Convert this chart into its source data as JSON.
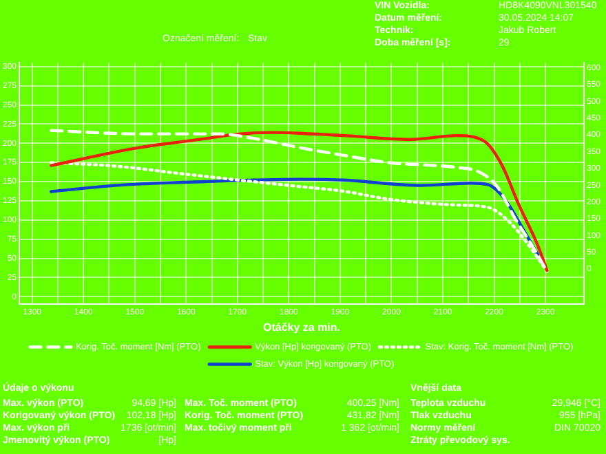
{
  "chart_data": {
    "type": "line",
    "xlabel": "Otáčky za min.",
    "grid": true,
    "legend": "bottom",
    "marker": "none",
    "xlim": [
      1275,
      2375
    ],
    "xticks": [
      1300,
      {
        "value": 1350,
        "label": null
      },
      1400,
      {
        "value": 1450,
        "label": null
      },
      1500,
      {
        "value": 1550,
        "label": null
      },
      1600,
      {
        "value": 1650,
        "label": null
      },
      1700,
      {
        "value": 1750,
        "label": null
      },
      1800,
      {
        "value": 1850,
        "label": null
      },
      1900,
      {
        "value": 1950,
        "label": null
      },
      2000,
      {
        "value": 2050,
        "label": null
      },
      2100,
      {
        "value": 2150,
        "label": null
      },
      2200,
      {
        "value": 2250,
        "label": null
      },
      2300
    ],
    "ylim": [
      -10,
      305
    ],
    "yticks": [
      0,
      25,
      50,
      75,
      100,
      125,
      150,
      175,
      200,
      225,
      250,
      275,
      300
    ],
    "y2lim": [
      -105,
      615
    ],
    "y2ticks": [
      0,
      50,
      100,
      150,
      200,
      250,
      300,
      350,
      400,
      450,
      500,
      550,
      600
    ],
    "series": [
      {
        "name": "Korig. Toč. moment [Nm] (PTO)",
        "color": "#ffffff",
        "axis": "y2",
        "line_style": "dashed",
        "x": [
          1337,
          1506,
          1663,
          1733,
          1821,
          1907,
          1996,
          2127,
          2170,
          2206,
          2241,
          2275,
          2303
        ],
        "values": [
          413,
          403,
          403,
          389,
          362,
          339,
          317,
          303,
          290,
          246,
          150,
          68,
          -7
        ]
      },
      {
        "name": "Výkon [Hp] korigovaný (PTO)",
        "color": "#e8210a",
        "line_style": "solid",
        "x": [
          1337,
          1506,
          1637,
          1702,
          1768,
          1821,
          1907,
          2038,
          2127,
          2180,
          2214,
          2248,
          2285,
          2303
        ],
        "values": [
          171,
          194,
          206,
          212,
          214,
          213,
          210,
          205,
          210,
          203,
          173,
          120,
          67,
          34
        ]
      },
      {
        "name": "Stav: Korig. Toč. moment [Nm] (PTO)",
        "color": "#ffffff",
        "axis": "y2",
        "line_style": "dotted",
        "x": [
          1337,
          1461,
          1593,
          1698,
          1821,
          1907,
          1996,
          2127,
          2188,
          2232,
          2275,
          2303
        ],
        "values": [
          317,
          307,
          284,
          266,
          246,
          232,
          208,
          191,
          184,
          137,
          55,
          -7
        ]
      },
      {
        "name": "Stav: Výkon [Hp] korigovaný (PTO)",
        "color": "#1040d0",
        "line_style": "solid",
        "x": [
          1337,
          1461,
          1637,
          1821,
          1907,
          2057,
          2154,
          2188,
          2222,
          2259,
          2285
        ],
        "values": [
          137,
          145,
          150,
          153,
          152,
          145,
          148,
          146,
          126,
          85,
          55
        ]
      }
    ],
    "annotations": [
      "Označení měření:",
      "Stav",
      "VIN Vozidla:",
      "HD8K4090VNL301540",
      "Datum měření:",
      "30.05.2024 14:07",
      "Technik:",
      "Jakub Robert",
      "Doba měření [s]:",
      "29",
      "Údaje o výkonu",
      "Vnější data",
      "Max. výkon (PTO)",
      "94,69 [Hp]",
      "Max. Toč. moment (PTO)",
      "400,25 [Nm]",
      "Teplota vzduchu",
      "29,946 [°C]",
      "Korigovaný výkon (PTO)",
      "102,18 [Hp]",
      "Korig. Toč. moment (PTO)",
      "431,82 [Nm]",
      "Tlak vzduchu",
      "955 [hPa]",
      "Max. výkon při",
      "1736 [ot/min]",
      "Max. točivý moment při",
      "1 362 [ot/min]",
      "Normy měření",
      "DIN 70020",
      "Jmenovitý výkon (PTO)",
      "[Hp]",
      "Ztráty převodový sys."
    ]
  }
}
